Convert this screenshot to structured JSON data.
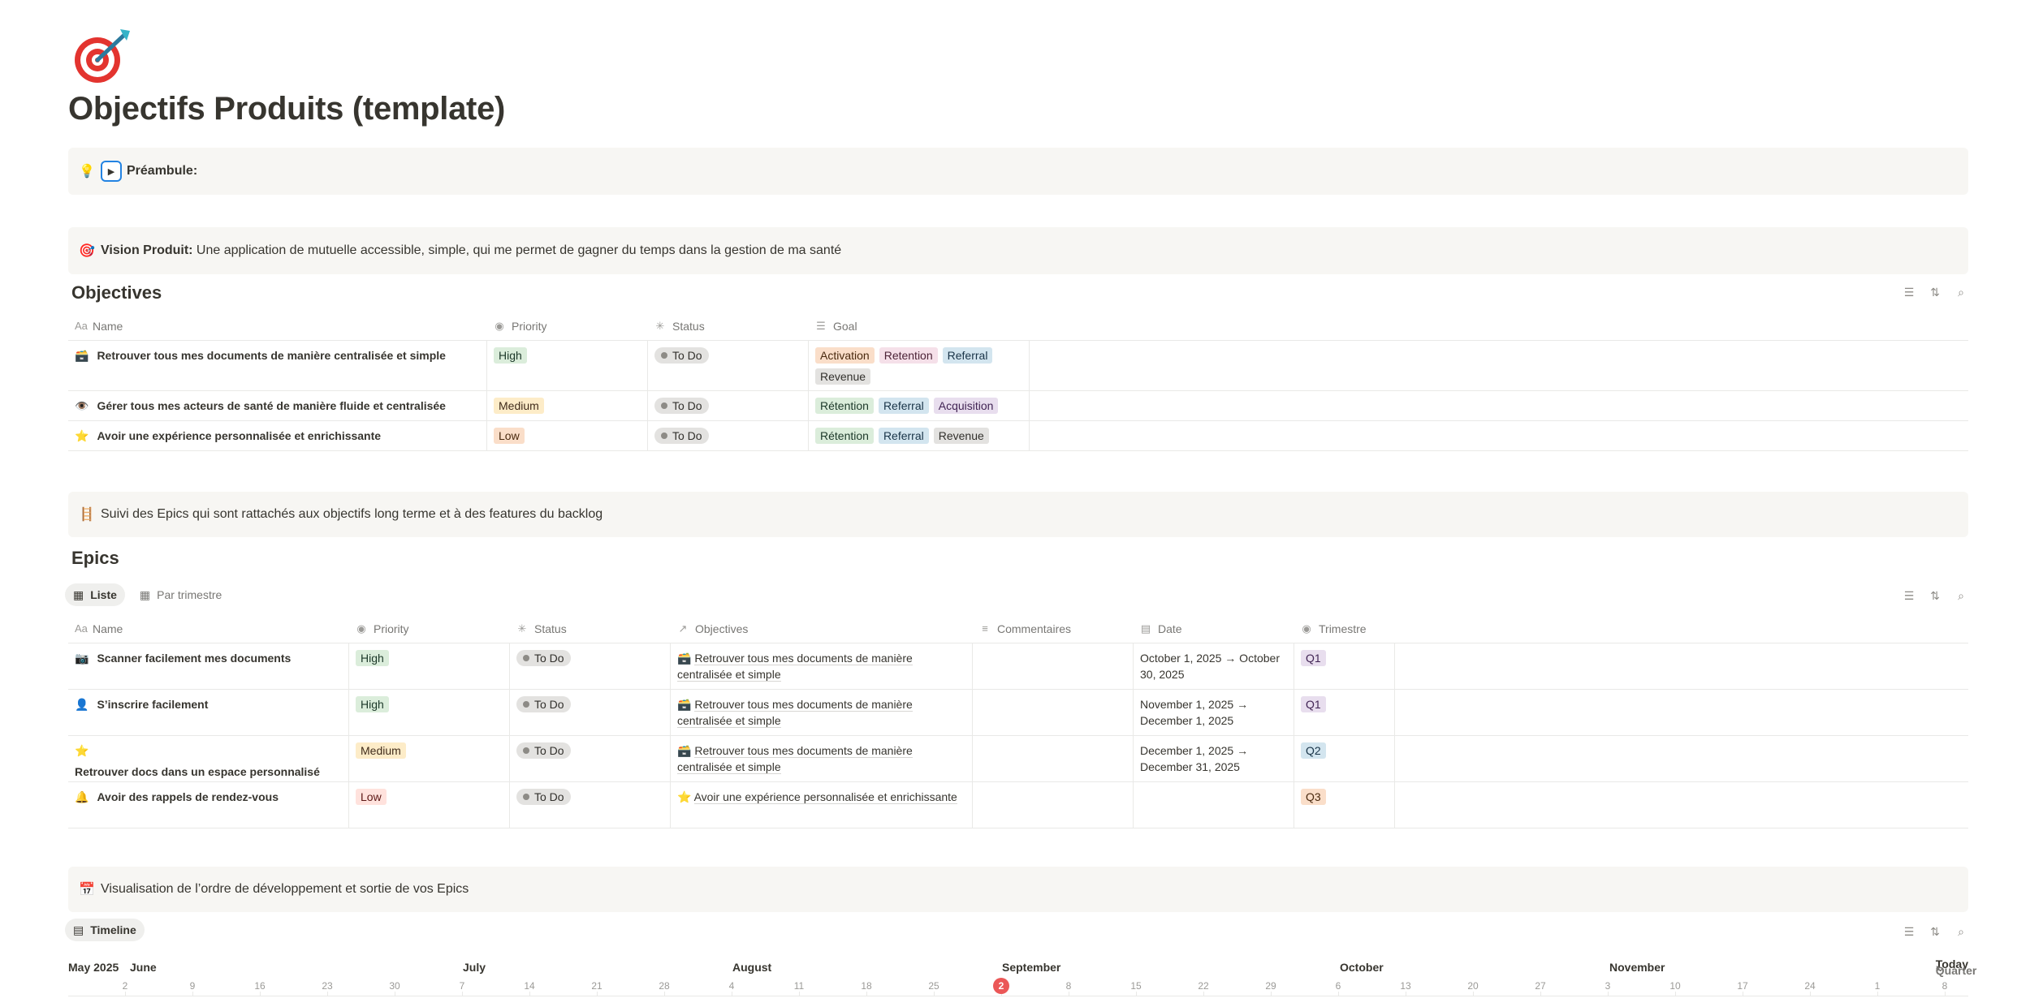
{
  "page": {
    "icon_name": "bullseye-dart-icon",
    "title": "Objectifs Produits (template)"
  },
  "callouts": {
    "preamble": {
      "emoji": "💡",
      "label": "Préambule:"
    },
    "vision": {
      "emoji": "🎯",
      "label": "Vision Produit:",
      "text": " Une application de mutuelle accessible, simple, qui me permet de gagner du temps dans la gestion de ma santé"
    },
    "epics_intro": {
      "emoji": "🪜",
      "text": "Suivi des Epics qui sont rattachés aux objectifs long terme et à des features du backlog"
    },
    "timeline_intro": {
      "emoji": "📅",
      "text": "Visualisation de l’ordre de développement et sortie de vos Epics"
    }
  },
  "objectives": {
    "title": "Objectives",
    "columns": {
      "name": "Name",
      "priority": "Priority",
      "status": "Status",
      "goal": "Goal"
    },
    "rows": [
      {
        "emoji": "🗃️",
        "name": "Retrouver tous mes documents de manière centralisée et simple",
        "priority": "High",
        "status": "To Do",
        "goals": [
          "Activation",
          "Retention",
          "Referral",
          "Revenue"
        ]
      },
      {
        "emoji": "👁️",
        "name": "Gérer tous mes acteurs de santé de manière fluide et centralisée",
        "priority": "Medium",
        "status": "To Do",
        "goals": [
          "Rétention",
          "Referral",
          "Acquisition"
        ]
      },
      {
        "emoji": "⭐",
        "name": "Avoir une expérience personnalisée et enrichissante",
        "priority": "Low",
        "status": "To Do",
        "goals": [
          "Rétention",
          "Referral",
          "Revenue"
        ]
      }
    ]
  },
  "epics": {
    "title": "Epics",
    "tabs": [
      "Liste",
      "Par trimestre"
    ],
    "columns": {
      "name": "Name",
      "priority": "Priority",
      "status": "Status",
      "objectives": "Objectives",
      "comments": "Commentaires",
      "date": "Date",
      "quarter": "Trimestre"
    },
    "rows": [
      {
        "emoji": "📷",
        "name": "Scanner facilement mes documents",
        "priority": "High",
        "status": "To Do",
        "objective_emoji": "🗃️",
        "objective": "Retrouver tous mes documents de manière centralisée et simple",
        "date": "October 1, 2025 → October 30, 2025",
        "quarter": "Q1"
      },
      {
        "emoji": "👤",
        "name": "S’inscrire facilement",
        "priority": "High",
        "status": "To Do",
        "objective_emoji": "🗃️",
        "objective": "Retrouver tous mes documents de manière centralisée et simple",
        "date": "November 1, 2025 → December 1, 2025",
        "quarter": "Q1"
      },
      {
        "emoji": "⭐",
        "name": "Retrouver docs dans un espace personnalisé",
        "priority": "Medium",
        "status": "To Do",
        "objective_emoji": "🗃️",
        "objective": "Retrouver tous mes documents de manière centralisée et simple",
        "date": "December 1, 2025 → December 31, 2025",
        "quarter": "Q2"
      },
      {
        "emoji": "🔔",
        "name": "Avoir des rappels de rendez-vous",
        "priority": "Low",
        "status": "To Do",
        "objective_emoji": "⭐",
        "objective": "Avoir une expérience personnalisée et enrichissante",
        "date": "",
        "quarter": "Q3"
      }
    ]
  },
  "timeline": {
    "tab": "Timeline",
    "months": [
      "May 2025",
      "June",
      "July",
      "August",
      "September",
      "October",
      "November"
    ],
    "days": [
      "2",
      "9",
      "16",
      "23",
      "30",
      "7",
      "14",
      "21",
      "28",
      "4",
      "11",
      "18",
      "25",
      "2",
      "8",
      "15",
      "22",
      "29",
      "6",
      "13",
      "20",
      "27",
      "3",
      "10",
      "17",
      "24",
      "1",
      "8"
    ],
    "today_day": "2",
    "controls": {
      "scale": "Quarter",
      "today": "Today"
    }
  },
  "colors": {
    "accent": "#2383e2",
    "today_marker": "#eb5757",
    "callout_bg": "#f7f6f3"
  }
}
